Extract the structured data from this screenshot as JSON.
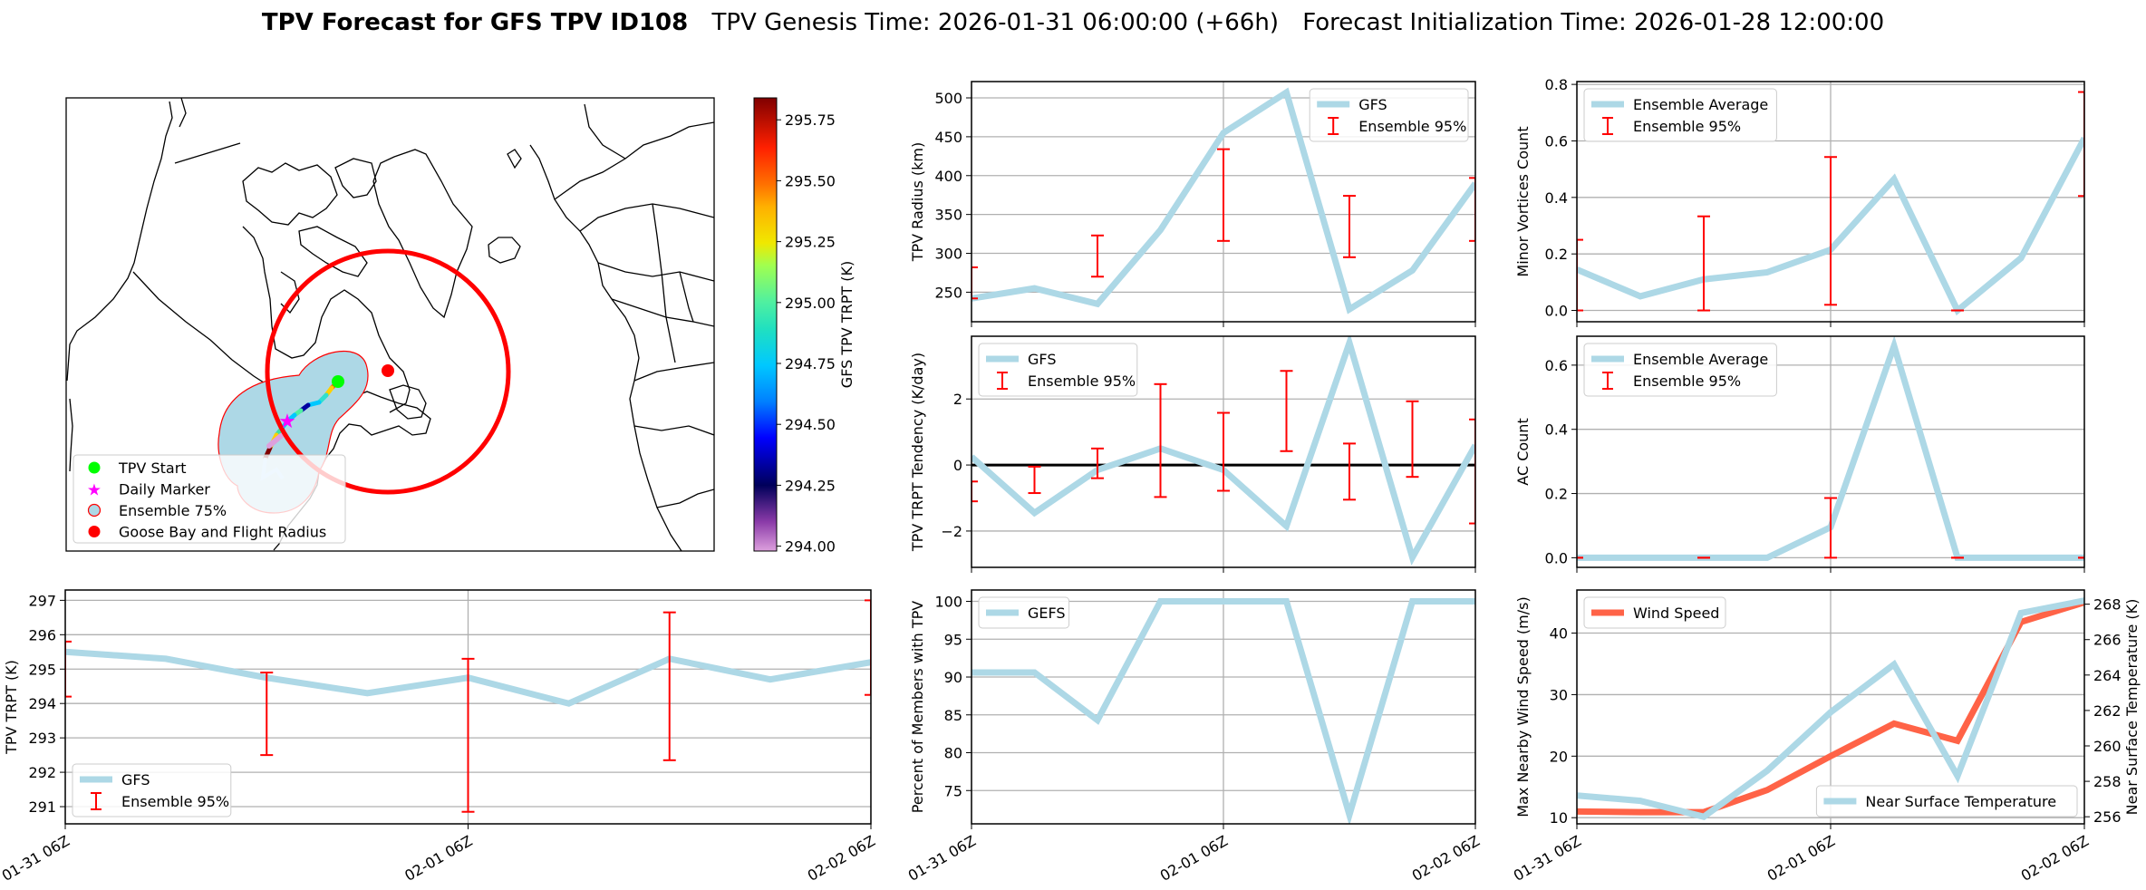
{
  "title": {
    "main": "TPV Forecast for GFS TPV ID108",
    "genesis": "TPV Genesis Time: 2026-01-31 06:00:00 (+66h)",
    "init": "Forecast Initialization Time: 2026-01-28 12:00:00"
  },
  "map": {
    "legend": [
      {
        "label": "TPV Start",
        "marker": "green-circle",
        "color": "#00ff00"
      },
      {
        "label": "Daily Marker",
        "marker": "magenta-star",
        "color": "#ff00ff"
      },
      {
        "label": "Ensemble 75%",
        "marker": "lightblue-circle-red-edge",
        "color": "#add8e6"
      },
      {
        "label": "Goose Bay and Flight Radius",
        "marker": "red-circle",
        "color": "#ff0000"
      }
    ],
    "colorbar": {
      "label": "GFS TPV TRPT (K)",
      "range": [
        293.98,
        295.84
      ],
      "ticks": [
        "294.00",
        "294.25",
        "294.50",
        "294.75",
        "295.00",
        "295.25",
        "295.50",
        "295.75"
      ],
      "colormap": "plum-purple-navy-blue-cyan-green-yellow-orange-red-darkred"
    }
  },
  "chart_data": [
    {
      "id": "radius",
      "type": "line",
      "ylabel": "TPV Radius (km)",
      "x": [
        "01-31 06Z",
        "01-31 12Z",
        "01-31 18Z",
        "02-01 00Z",
        "02-01 06Z",
        "02-01 12Z",
        "02-01 18Z",
        "02-02 00Z",
        "02-02 06Z"
      ],
      "ylim": [
        212,
        521
      ],
      "yticks": [
        250,
        300,
        350,
        400,
        450,
        500
      ],
      "ytick_labels": [
        "250",
        "300",
        "350",
        "400",
        "450",
        "500"
      ],
      "grid": true,
      "legend": "upper right",
      "series": [
        {
          "name": "GFS",
          "color": "#add8e6",
          "values": [
            242,
            255,
            235,
            330,
            455,
            507,
            228,
            278,
            390
          ]
        }
      ],
      "errorbars": {
        "name": "Ensemble 95%",
        "color": "#ff0000",
        "x": [
          "01-31 06Z",
          "01-31 18Z",
          "02-01 06Z",
          "02-01 18Z",
          "02-02 06Z"
        ],
        "low": [
          242,
          270,
          316,
          295,
          316
        ],
        "high": [
          282,
          323,
          434,
          374,
          397
        ]
      }
    },
    {
      "id": "trpt-tendency",
      "type": "line",
      "ylabel": "TPV TRPT Tendency (K/day)",
      "x": [
        "01-31 06Z",
        "01-31 12Z",
        "01-31 18Z",
        "02-01 00Z",
        "02-01 06Z",
        "02-01 12Z",
        "02-01 18Z",
        "02-02 00Z",
        "02-02 06Z"
      ],
      "ylim": [
        -3.1,
        3.9
      ],
      "yticks": [
        -2,
        0,
        2
      ],
      "ytick_labels": [
        "−2",
        "0",
        "2"
      ],
      "grid": true,
      "legend": "upper left",
      "zero_line": true,
      "series": [
        {
          "name": "GFS",
          "color": "#add8e6",
          "values": [
            0.25,
            -1.45,
            -0.15,
            0.5,
            -0.15,
            -1.85,
            3.7,
            -2.8,
            0.6
          ]
        }
      ],
      "errorbars": {
        "name": "Ensemble 95%",
        "color": "#ff0000",
        "x": [
          "01-31 06Z",
          "01-31 12Z",
          "01-31 18Z",
          "02-01 00Z",
          "02-01 06Z",
          "02-01 12Z",
          "02-01 18Z",
          "02-02 00Z",
          "02-02 06Z"
        ],
        "low": [
          -1.1,
          -0.85,
          -0.4,
          -0.97,
          -0.78,
          0.42,
          -1.05,
          -0.36,
          -1.77
        ],
        "high": [
          -0.5,
          -0.05,
          0.5,
          2.45,
          1.58,
          2.85,
          0.65,
          1.93,
          1.38
        ]
      }
    },
    {
      "id": "percent-members",
      "type": "line",
      "ylabel": "Percent of Members with TPV",
      "x": [
        "01-31 06Z",
        "01-31 12Z",
        "01-31 18Z",
        "02-01 00Z",
        "02-01 06Z",
        "02-01 12Z",
        "02-01 18Z",
        "02-02 00Z",
        "02-02 06Z"
      ],
      "x_tick_labels": [
        "01-31 06Z",
        "02-01 06Z",
        "02-02 06Z"
      ],
      "ylim": [
        70.6,
        101.5
      ],
      "yticks": [
        75,
        80,
        85,
        90,
        95,
        100
      ],
      "ytick_labels": [
        "75",
        "80",
        "85",
        "90",
        "95",
        "100"
      ],
      "grid": true,
      "legend": "upper left",
      "series": [
        {
          "name": "GEFS",
          "color": "#add8e6",
          "values": [
            90.6,
            90.6,
            84.3,
            100,
            100,
            100,
            71.8,
            100,
            100
          ]
        }
      ]
    },
    {
      "id": "minor-vortices",
      "type": "line",
      "ylabel": "Minor Vortices Count",
      "x": [
        "01-31 06Z",
        "01-31 12Z",
        "01-31 18Z",
        "02-01 00Z",
        "02-01 06Z",
        "02-01 12Z",
        "02-01 18Z",
        "02-02 00Z",
        "02-02 06Z"
      ],
      "ylim": [
        -0.04,
        0.81
      ],
      "yticks": [
        0,
        0.2,
        0.4,
        0.6,
        0.8
      ],
      "ytick_labels": [
        "0.0",
        "0.2",
        "0.4",
        "0.6",
        "0.8"
      ],
      "grid": true,
      "legend": "upper left",
      "series": [
        {
          "name": "Ensemble Average",
          "color": "#add8e6",
          "values": [
            0.145,
            0.05,
            0.11,
            0.135,
            0.215,
            0.465,
            0.0,
            0.185,
            0.61
          ]
        }
      ],
      "errorbars": {
        "name": "Ensemble 95%",
        "color": "#ff0000",
        "x": [
          "01-31 06Z",
          "01-31 18Z",
          "02-01 06Z",
          "02-01 18Z",
          "02-02 06Z"
        ],
        "low": [
          0,
          0,
          0.02,
          0,
          0.405
        ],
        "high": [
          0.25,
          0.333,
          0.543,
          0,
          0.773
        ]
      }
    },
    {
      "id": "ac-count",
      "type": "line",
      "ylabel": "AC Count",
      "x": [
        "01-31 06Z",
        "01-31 12Z",
        "01-31 18Z",
        "02-01 00Z",
        "02-01 06Z",
        "02-01 12Z",
        "02-01 18Z",
        "02-02 00Z",
        "02-02 06Z"
      ],
      "ylim": [
        -0.03,
        0.69
      ],
      "yticks": [
        0,
        0.2,
        0.4,
        0.6
      ],
      "ytick_labels": [
        "0.0",
        "0.2",
        "0.4",
        "0.6"
      ],
      "grid": true,
      "legend": "upper left",
      "series": [
        {
          "name": "Ensemble Average",
          "color": "#add8e6",
          "values": [
            0,
            0,
            0,
            0,
            0.095,
            0.66,
            0,
            0,
            0
          ]
        }
      ],
      "errorbars": {
        "name": "Ensemble 95%",
        "color": "#ff0000",
        "x": [
          "01-31 06Z",
          "01-31 18Z",
          "02-01 06Z",
          "02-01 18Z",
          "02-02 06Z"
        ],
        "low": [
          0,
          0,
          0,
          0,
          0
        ],
        "high": [
          0,
          0,
          0.186,
          0,
          0
        ]
      }
    },
    {
      "id": "wind-temp",
      "type": "line",
      "ylabel": "Max Nearby Wind Speed (m/s)",
      "ylabel_color": "#ff6347",
      "x": [
        "01-31 06Z",
        "01-31 12Z",
        "01-31 18Z",
        "02-01 00Z",
        "02-01 06Z",
        "02-01 12Z",
        "02-01 18Z",
        "02-02 00Z",
        "02-02 06Z"
      ],
      "x_tick_labels": [
        "01-31 06Z",
        "02-01 06Z",
        "02-02 06Z"
      ],
      "ylim": [
        9,
        47
      ],
      "yticks": [
        10,
        20,
        30,
        40
      ],
      "ytick_labels": [
        "10",
        "20",
        "30",
        "40"
      ],
      "grid": true,
      "legend": "upper left",
      "series": [
        {
          "name": "Wind Speed",
          "color": "#ff6347",
          "values": [
            11,
            10.9,
            10.9,
            14.5,
            20,
            25.3,
            22.5,
            41.8,
            45
          ]
        }
      ],
      "secondary": {
        "ylabel": "Near Surface Temperature (K)",
        "color": "#4169e1",
        "ylim": [
          255.6,
          268.8
        ],
        "yticks": [
          256,
          258,
          260,
          262,
          264,
          266,
          268
        ],
        "ytick_labels": [
          "256",
          "258",
          "260",
          "262",
          "264",
          "266",
          "268"
        ],
        "legend": "lower right",
        "series": [
          {
            "name": "Near Surface Temperature",
            "color": "#add8e6",
            "values": [
              257.2,
              256.9,
              256.0,
              258.6,
              261.9,
              264.6,
              258.3,
              267.5,
              268.2
            ]
          }
        ]
      }
    },
    {
      "id": "trpt",
      "type": "line",
      "ylabel": "TPV TRPT (K)",
      "x": [
        "01-31 06Z",
        "01-31 12Z",
        "01-31 18Z",
        "02-01 00Z",
        "02-01 06Z",
        "02-01 12Z",
        "02-01 18Z",
        "02-02 00Z",
        "02-02 06Z"
      ],
      "x_tick_labels": [
        "01-31 06Z",
        "02-01 06Z",
        "02-02 06Z"
      ],
      "ylim": [
        290.5,
        297.3
      ],
      "yticks": [
        291,
        292,
        293,
        294,
        295,
        296,
        297
      ],
      "ytick_labels": [
        "291",
        "292",
        "293",
        "294",
        "295",
        "296",
        "297"
      ],
      "grid": true,
      "legend": "lower left",
      "series": [
        {
          "name": "GFS",
          "color": "#add8e6",
          "values": [
            295.5,
            295.3,
            294.75,
            294.3,
            294.75,
            294.0,
            295.3,
            294.7,
            295.2
          ]
        }
      ],
      "errorbars": {
        "name": "Ensemble 95%",
        "color": "#ff0000",
        "x": [
          "01-31 06Z",
          "01-31 18Z",
          "02-01 06Z",
          "02-01 18Z",
          "02-02 06Z"
        ],
        "low": [
          294.2,
          292.5,
          290.85,
          292.35,
          294.25
        ],
        "high": [
          295.8,
          294.9,
          295.3,
          296.65,
          297.0
        ]
      }
    }
  ]
}
